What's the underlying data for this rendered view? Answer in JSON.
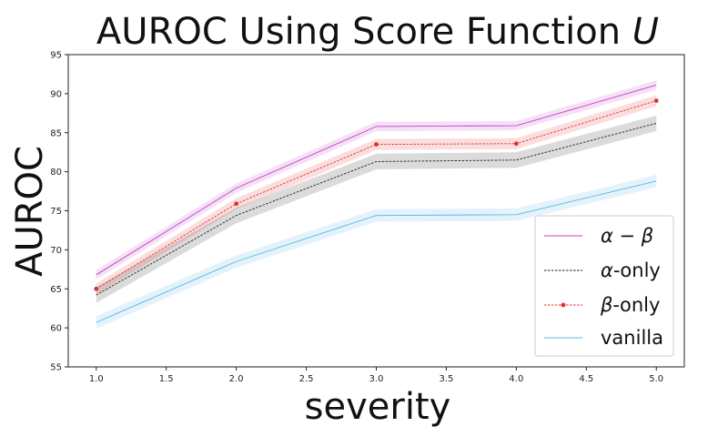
{
  "chart_data": {
    "type": "line",
    "title_main": "AUROC Using Score Function ",
    "title_var": "U",
    "xlabel": "severity",
    "ylabel": "AUROC",
    "x": [
      1,
      2,
      3,
      4,
      5
    ],
    "xlim": [
      0.8,
      5.2
    ],
    "ylim": [
      55,
      95
    ],
    "xticks": [
      1.0,
      1.5,
      2.0,
      2.5,
      3.0,
      3.5,
      4.0,
      4.5,
      5.0
    ],
    "xtick_labels": [
      "1.0",
      "1.5",
      "2.0",
      "2.5",
      "3.0",
      "3.5",
      "4.0",
      "4.5",
      "5.0"
    ],
    "yticks": [
      55,
      60,
      65,
      70,
      75,
      80,
      85,
      90,
      95
    ],
    "ytick_labels": [
      "55",
      "60",
      "65",
      "70",
      "75",
      "80",
      "85",
      "90",
      "95"
    ],
    "grid": false,
    "legend_position": "bottom-right",
    "series": [
      {
        "name": "α − β",
        "values": [
          66.8,
          77.9,
          85.8,
          85.9,
          91.1
        ],
        "band": 0.6,
        "color": "#c040c8",
        "style": "solid",
        "marker": false
      },
      {
        "name": "α-only",
        "values": [
          64.2,
          74.4,
          81.3,
          81.5,
          86.2
        ],
        "band": 1.0,
        "color": "#222222",
        "style": "dashed",
        "marker": false
      },
      {
        "name": "β-only",
        "values": [
          65.0,
          75.9,
          83.5,
          83.6,
          89.1
        ],
        "band": 0.7,
        "color": "#e03030",
        "style": "dashed",
        "marker": true
      },
      {
        "name": "vanilla",
        "values": [
          60.7,
          68.5,
          74.4,
          74.5,
          78.8
        ],
        "band": 0.8,
        "color": "#5ab4e6",
        "style": "solid",
        "marker": false
      }
    ],
    "legend_labels": [
      {
        "prefix": "α − β",
        "suffix": ""
      },
      {
        "prefix": "α",
        "suffix": "-only"
      },
      {
        "prefix": "β",
        "suffix": "-only"
      },
      {
        "prefix": "",
        "suffix": "vanilla"
      }
    ]
  }
}
